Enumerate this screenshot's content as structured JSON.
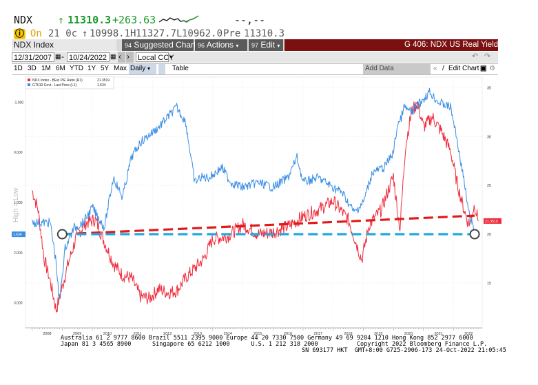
{
  "quote": {
    "ticker": "NDX",
    "arrow": "↑",
    "price": "11310.3",
    "change": "+263.63",
    "dashes": "--,--",
    "open_label": "On",
    "open_code": "21 0c",
    "open_arrow": "↑",
    "open": "10998.1",
    "high_code": "H",
    "high": "11327.7",
    "low_code": "L",
    "low": "10962.0",
    "prev_label": "Pre",
    "prev": "11310.3"
  },
  "toolbar": {
    "index_label": "NDX Index",
    "suggested": "Suggested Charts",
    "actions": "Actions",
    "edit": "Edit",
    "title": "G 406: NDX US Real Yield",
    "start_date": "12/31/2007",
    "end_date": "10/24/2022",
    "currency": "Local CCY",
    "ranges": [
      "1D",
      "3D",
      "1M",
      "6M",
      "YTD",
      "1Y",
      "5Y",
      "Max"
    ],
    "frequency": "Daily",
    "table": "Table",
    "add_data": "Add Data",
    "edit_chart": "Edit Chart"
  },
  "colors": {
    "red": "#ef2b3c",
    "blue": "#3a8ee6",
    "trend_red": "#e01a1a",
    "trend_blue": "#22a8e0"
  },
  "chart_data": {
    "type": "line",
    "legend": [
      {
        "name": "NDX Index - BEst P/E Ratio (R1)",
        "value": "21.3519",
        "color": "#ef2b3c"
      },
      {
        "name": "GTII10 Govt - Last Price (L1)",
        "value": "1.634",
        "color": "#3a8ee6"
      }
    ],
    "ylabel": "High > Low",
    "x_years": [
      "2008",
      "2009",
      "2010",
      "2011",
      "2012",
      "2013",
      "2014",
      "2015",
      "2016",
      "2017",
      "2018",
      "2019",
      "2020",
      "2021",
      "2022"
    ],
    "left_axis": {
      "ticks": [
        "-1.000",
        "0.000",
        "1.000",
        "2.000",
        "3.000"
      ],
      "inverted": true,
      "range": [
        -1.5,
        3.5
      ],
      "current_label": "1.634"
    },
    "right_axis": {
      "ticks": [
        "15",
        "20",
        "25",
        "30",
        "35"
      ],
      "range": [
        10.4,
        36.1
      ],
      "current_label": "21.3519"
    },
    "series": [
      {
        "name": "NDX Index - BEst P/E Ratio (R1)",
        "axis": "right",
        "x": [
          2008.0,
          2008.2,
          2008.4,
          2008.6,
          2008.8,
          2008.95,
          2009.2,
          2009.5,
          2009.8,
          2010.1,
          2010.4,
          2010.7,
          2011.0,
          2011.3,
          2011.6,
          2011.9,
          2012.2,
          2012.5,
          2012.8,
          2013.1,
          2013.4,
          2013.7,
          2014.0,
          2014.5,
          2015.0,
          2015.5,
          2016.0,
          2016.5,
          2017.0,
          2017.5,
          2018.0,
          2018.5,
          2018.95,
          2019.2,
          2019.6,
          2020.0,
          2020.15,
          2020.22,
          2020.4,
          2020.6,
          2020.8,
          2021.0,
          2021.3,
          2021.6,
          2021.9,
          2022.1,
          2022.3,
          2022.5,
          2022.7,
          2022.82
        ],
        "y": [
          24.5,
          22.5,
          17.5,
          15.2,
          12.2,
          14.0,
          17.0,
          20.0,
          21.2,
          21.5,
          19.2,
          17.0,
          15.8,
          15.5,
          13.6,
          13.4,
          14.4,
          14.0,
          14.2,
          15.5,
          16.5,
          17.5,
          19.5,
          19.8,
          21.0,
          20.0,
          20.2,
          20.8,
          21.8,
          22.5,
          23.4,
          21.5,
          17.4,
          21.0,
          22.5,
          26.0,
          22.0,
          20.6,
          29.0,
          32.5,
          33.5,
          31.0,
          32.0,
          30.5,
          28.5,
          25.5,
          23.0,
          21.0,
          23.0,
          21.3519
        ]
      },
      {
        "name": "GTII10 Govt - Last Price (L1)",
        "axis": "left",
        "x": [
          2008.0,
          2008.3,
          2008.6,
          2008.8,
          2008.9,
          2009.1,
          2009.4,
          2009.7,
          2010.0,
          2010.4,
          2010.7,
          2011.0,
          2011.3,
          2011.6,
          2011.8,
          2012.2,
          2012.5,
          2012.8,
          2012.9,
          2013.1,
          2013.4,
          2013.6,
          2013.9,
          2014.3,
          2014.6,
          2015.0,
          2015.5,
          2016.0,
          2016.5,
          2016.8,
          2017.0,
          2017.5,
          2018.0,
          2018.3,
          2018.7,
          2019.0,
          2019.3,
          2019.7,
          2020.0,
          2020.15,
          2020.22,
          2020.35,
          2020.6,
          2020.9,
          2021.2,
          2021.5,
          2021.9,
          2022.1,
          2022.3,
          2022.5,
          2022.7,
          2022.82
        ],
        "y": [
          1.4,
          1.4,
          1.4,
          2.2,
          3.0,
          1.9,
          1.5,
          1.4,
          1.1,
          1.5,
          0.5,
          0.9,
          0.1,
          -0.2,
          -0.3,
          -0.5,
          -0.7,
          -0.9,
          -0.8,
          -0.6,
          0.6,
          0.5,
          0.5,
          0.3,
          0.6,
          0.7,
          0.6,
          0.7,
          0.5,
          0.1,
          0.6,
          0.5,
          0.7,
          0.8,
          1.2,
          1.0,
          0.4,
          0.3,
          0.0,
          -0.6,
          -0.6,
          -0.9,
          -0.8,
          -1.0,
          -1.2,
          -1.0,
          -0.9,
          -0.3,
          0.4,
          1.2,
          1.6,
          1.634
        ]
      }
    ],
    "trendlines": [
      {
        "name": "red-trend",
        "x": [
          2009.0,
          2022.7
        ],
        "y_right": [
          20.0,
          21.9
        ]
      },
      {
        "name": "blue-trend",
        "x": [
          2009.0,
          2022.7
        ],
        "y_right": [
          20.0,
          20.0
        ]
      }
    ]
  },
  "footer": {
    "line1": "Australia 61 2 9777 8600 Brazil 5511 2395 9000 Europe 44 20 7330 7500 Germany 49 69 9204 1210 Hong Kong 852 2977 6000",
    "line2": "Japan 81 3 4565 8900      Singapore 65 6212 1000      U.S. 1 212 318 2000           Copyright 2022 Bloomberg Finance L.P.",
    "line3": "SN 693177 HKT  GMT+8:00 G725-2906-173 24-Oct-2022 21:05:45"
  }
}
